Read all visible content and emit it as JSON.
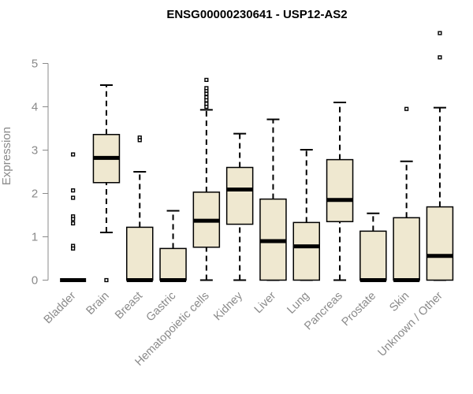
{
  "chart_data": {
    "type": "boxplot",
    "title": "ENSG00000230641 - USP12-AS2",
    "ylabel": "Expression",
    "xlabel": "",
    "ylim": [
      0,
      5.8
    ],
    "yticks": [
      0,
      1,
      2,
      3,
      4,
      5
    ],
    "box_fill": "#efe8d0",
    "box_stroke": "#000000",
    "categories": [
      "Bladder",
      "Brain",
      "Breast",
      "Gastric",
      "Hematopoietic cells",
      "Kidney",
      "Liver",
      "Lung",
      "Pancreas",
      "Prostate",
      "Skin",
      "Unknown / Other"
    ],
    "series": [
      {
        "category": "Bladder",
        "q1": 0,
        "median": 0,
        "q3": 0,
        "whisker_low": 0,
        "whisker_high": 0,
        "outliers": [
          2.9,
          2.07,
          1.9,
          1.47,
          1.41,
          1.31,
          0.79,
          0.73
        ]
      },
      {
        "category": "Brain",
        "q1": 2.25,
        "median": 2.82,
        "q3": 3.36,
        "whisker_low": 1.1,
        "whisker_high": 4.5,
        "outliers": [
          0
        ]
      },
      {
        "category": "Breast",
        "q1": 0,
        "median": 0,
        "q3": 1.22,
        "whisker_low": 0,
        "whisker_high": 2.5,
        "outliers": [
          3.29,
          3.23
        ]
      },
      {
        "category": "Gastric",
        "q1": 0,
        "median": 0,
        "q3": 0.73,
        "whisker_low": 0,
        "whisker_high": 1.6,
        "outliers": []
      },
      {
        "category": "Hematopoietic cells",
        "q1": 0.76,
        "median": 1.37,
        "q3": 2.03,
        "whisker_low": 0,
        "whisker_high": 3.93,
        "outliers": [
          4.0,
          4.07,
          4.15,
          4.22,
          4.3,
          4.37,
          4.43,
          4.62
        ]
      },
      {
        "category": "Kidney",
        "q1": 1.29,
        "median": 2.09,
        "q3": 2.6,
        "whisker_low": 0,
        "whisker_high": 3.38,
        "outliers": []
      },
      {
        "category": "Liver",
        "q1": 0,
        "median": 0.9,
        "q3": 1.87,
        "whisker_low": 0,
        "whisker_high": 3.71,
        "outliers": []
      },
      {
        "category": "Lung",
        "q1": 0,
        "median": 0.78,
        "q3": 1.33,
        "whisker_low": 0,
        "whisker_high": 3.01,
        "outliers": []
      },
      {
        "category": "Pancreas",
        "q1": 1.35,
        "median": 1.85,
        "q3": 2.78,
        "whisker_low": 0,
        "whisker_high": 4.1,
        "outliers": []
      },
      {
        "category": "Prostate",
        "q1": 0,
        "median": 0,
        "q3": 1.13,
        "whisker_low": 0,
        "whisker_high": 1.54,
        "outliers": []
      },
      {
        "category": "Skin",
        "q1": 0,
        "median": 0,
        "q3": 1.44,
        "whisker_low": 0,
        "whisker_high": 2.74,
        "outliers": [
          3.95
        ]
      },
      {
        "category": "Unknown / Other",
        "q1": 0,
        "median": 0.56,
        "q3": 1.69,
        "whisker_low": 0,
        "whisker_high": 3.98,
        "outliers": [
          5.14,
          5.7
        ]
      }
    ]
  }
}
